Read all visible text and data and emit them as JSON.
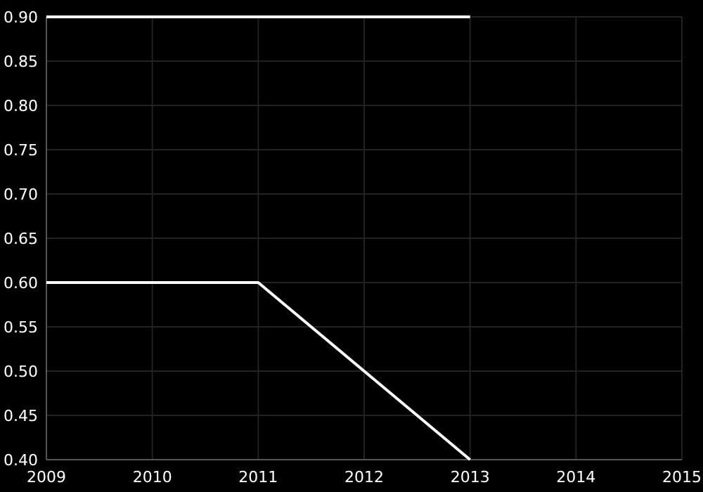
{
  "chart_data": {
    "type": "line",
    "x": [
      2009,
      2010,
      2011,
      2012,
      2013
    ],
    "series": [
      {
        "color": "#ffffff",
        "values": [
          0.9,
          0.9,
          0.9,
          0.9,
          0.9
        ]
      },
      {
        "color": "#ffffff",
        "values": [
          0.6,
          0.6,
          0.6,
          0.5,
          0.4
        ]
      }
    ],
    "xlim": [
      2009,
      2015
    ],
    "xticks": [
      2009,
      2010,
      2011,
      2012,
      2013,
      2014,
      2015
    ],
    "ylim": [
      0.4,
      0.9
    ],
    "yticks": [
      {
        "value": 0.4,
        "label": "0.40"
      },
      {
        "value": 0.45,
        "label": "0.45"
      },
      {
        "value": 0.5,
        "label": "0.50"
      },
      {
        "value": 0.55,
        "label": "0.55"
      },
      {
        "value": 0.6,
        "label": "0.60"
      },
      {
        "value": 0.65,
        "label": "0.65"
      },
      {
        "value": 0.7,
        "label": "0.70"
      },
      {
        "value": 0.75,
        "label": "0.75"
      },
      {
        "value": 0.8,
        "label": "0.80"
      },
      {
        "value": 0.85,
        "label": "0.85"
      },
      {
        "value": 0.9,
        "label": "0.90"
      }
    ],
    "grid": true,
    "marker": "none",
    "line_style": "solid"
  }
}
